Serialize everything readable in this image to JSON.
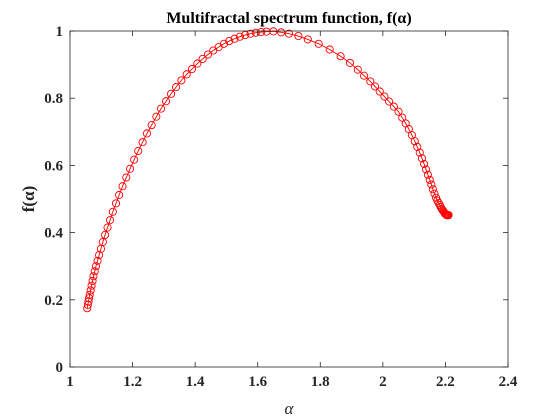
{
  "chart_data": {
    "type": "line",
    "title": "Multifractal spectrum function, f(α)",
    "xlabel": "α",
    "ylabel": "f(α)",
    "xlim": [
      1,
      2.4
    ],
    "ylim": [
      0,
      1
    ],
    "xticks": [
      "1",
      "1.2",
      "1.4",
      "1.6",
      "1.8",
      "2",
      "2.2",
      "2.4"
    ],
    "yticks": [
      "0",
      "0.2",
      "0.4",
      "0.6",
      "0.8",
      "1"
    ],
    "grid": false,
    "legend": "none",
    "series": [
      {
        "color": "#ff0000",
        "marker": "circle-open",
        "x": [
          1.055,
          1.057,
          1.059,
          1.061,
          1.063,
          1.066,
          1.069,
          1.072,
          1.075,
          1.079,
          1.083,
          1.088,
          1.093,
          1.099,
          1.105,
          1.112,
          1.12,
          1.128,
          1.137,
          1.147,
          1.157,
          1.168,
          1.18,
          1.192,
          1.205,
          1.218,
          1.232,
          1.246,
          1.261,
          1.276,
          1.291,
          1.307,
          1.323,
          1.339,
          1.356,
          1.373,
          1.39,
          1.407,
          1.424,
          1.441,
          1.458,
          1.475,
          1.492,
          1.509,
          1.526,
          1.543,
          1.56,
          1.577,
          1.594,
          1.611,
          1.628,
          1.65,
          1.675,
          1.7,
          1.73,
          1.76,
          1.795,
          1.83,
          1.865,
          1.895,
          1.92,
          1.94,
          1.96,
          1.975,
          1.99,
          2.005,
          2.02,
          2.035,
          2.05,
          2.062,
          2.073,
          2.083,
          2.093,
          2.102,
          2.11,
          2.118,
          2.125,
          2.132,
          2.138,
          2.144,
          2.15,
          2.155,
          2.16,
          2.165,
          2.17,
          2.174,
          2.178,
          2.182,
          2.185,
          2.188,
          2.191,
          2.194,
          2.196,
          2.198,
          2.2,
          2.202,
          2.203,
          2.204,
          2.205,
          2.206,
          2.207,
          2.208,
          2.209,
          2.21
        ],
        "y": [
          0.175,
          0.185,
          0.195,
          0.205,
          0.215,
          0.228,
          0.242,
          0.256,
          0.27,
          0.285,
          0.3,
          0.316,
          0.333,
          0.352,
          0.372,
          0.393,
          0.415,
          0.437,
          0.462,
          0.487,
          0.512,
          0.538,
          0.564,
          0.59,
          0.617,
          0.643,
          0.669,
          0.695,
          0.72,
          0.745,
          0.769,
          0.791,
          0.813,
          0.833,
          0.853,
          0.871,
          0.887,
          0.903,
          0.917,
          0.93,
          0.942,
          0.952,
          0.962,
          0.97,
          0.977,
          0.983,
          0.988,
          0.992,
          0.995,
          0.997,
          0.998,
          0.999,
          0.996,
          0.992,
          0.985,
          0.975,
          0.962,
          0.945,
          0.925,
          0.905,
          0.885,
          0.867,
          0.85,
          0.835,
          0.82,
          0.805,
          0.79,
          0.775,
          0.76,
          0.742,
          0.725,
          0.708,
          0.69,
          0.672,
          0.655,
          0.638,
          0.621,
          0.604,
          0.588,
          0.572,
          0.557,
          0.543,
          0.529,
          0.516,
          0.504,
          0.495,
          0.488,
          0.482,
          0.476,
          0.471,
          0.467,
          0.463,
          0.46,
          0.457,
          0.455,
          0.454,
          0.453,
          0.452,
          0.452,
          0.452,
          0.452,
          0.452,
          0.452,
          0.452
        ]
      }
    ]
  }
}
